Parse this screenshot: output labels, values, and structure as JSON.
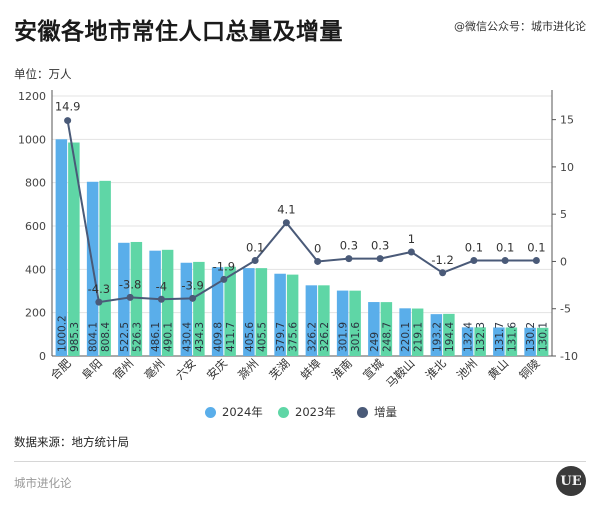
{
  "header": {
    "title": "安徽各地市常住人口总量及增量",
    "watermark_top": "@微信公众号：城市进化论",
    "unit_label": "单位：万人"
  },
  "footer": {
    "data_source": "数据来源：地方统计局",
    "brand": "城市进化论",
    "logo_text": "UE"
  },
  "colors": {
    "series_2024": "#5aaeea",
    "series_2023": "#5fd6a6",
    "series_increment": "#4a5a78",
    "grid": "#e3e3e3"
  },
  "chart_data": {
    "type": "bar",
    "categories": [
      "合肥",
      "阜阳",
      "宿州",
      "亳州",
      "六安",
      "安庆",
      "滁州",
      "芜湖",
      "蚌埠",
      "淮南",
      "宣城",
      "马鞍山",
      "淮北",
      "池州",
      "黄山",
      "铜陵"
    ],
    "series": [
      {
        "name": "2024年",
        "type": "bar",
        "axis": "left",
        "values": [
          1000.2,
          804.1,
          522.5,
          486.1,
          430.4,
          409.8,
          405.6,
          379.7,
          326.2,
          301.9,
          249,
          220.1,
          193.2,
          132.4,
          131.7,
          130.2
        ]
      },
      {
        "name": "2023年",
        "type": "bar",
        "axis": "left",
        "values": [
          985.3,
          808.4,
          526.3,
          490.1,
          434.3,
          411.7,
          405.5,
          375.6,
          326.2,
          301.6,
          248.7,
          219.1,
          194.4,
          132.3,
          131.6,
          130.1
        ]
      },
      {
        "name": "增量",
        "type": "line",
        "axis": "right",
        "values": [
          14.9,
          -4.3,
          -3.8,
          -4,
          -3.9,
          -1.9,
          0.1,
          4.1,
          0,
          0.3,
          0.3,
          1,
          -1.2,
          0.1,
          0.1,
          0.1
        ]
      }
    ],
    "left_axis": {
      "min": 0,
      "max": 1200,
      "ticks": [
        0,
        200,
        400,
        600,
        800,
        1000,
        1200
      ]
    },
    "right_axis": {
      "min": -10,
      "max": 17.5,
      "ticks": [
        -10,
        -5,
        0,
        5,
        10,
        15
      ]
    },
    "grid": true,
    "legend_position": "bottom"
  }
}
